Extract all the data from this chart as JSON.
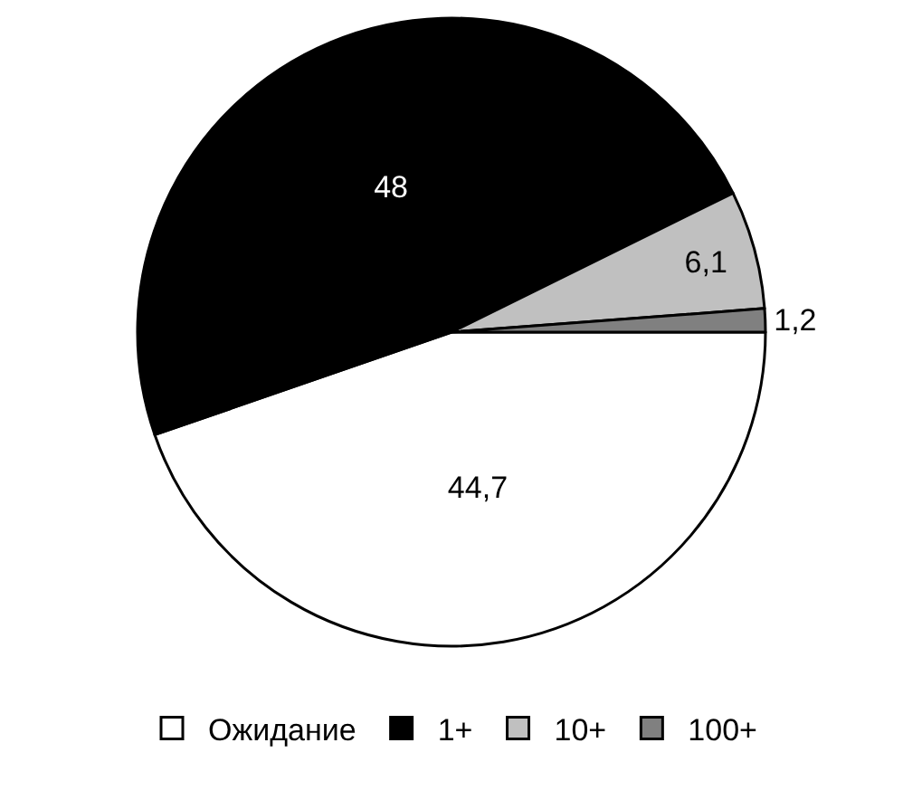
{
  "chart_data": {
    "type": "pie",
    "categories": [
      "Ожидание",
      "1+",
      "10+",
      "100+"
    ],
    "values": [
      44.7,
      48,
      6.1,
      1.2
    ],
    "colors": [
      "#ffffff",
      "#000000",
      "#c0c0c0",
      "#808080"
    ],
    "value_labels": [
      "44,7",
      "48",
      "6,1",
      "1,2"
    ],
    "legend": "bottom"
  }
}
